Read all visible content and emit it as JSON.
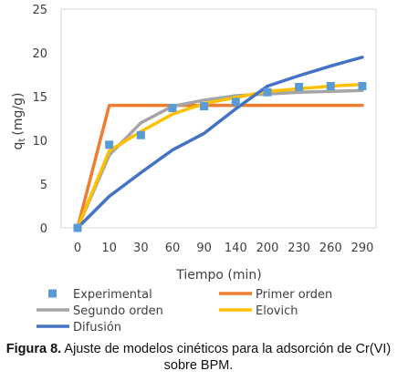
{
  "chart_data": {
    "type": "line",
    "title": "",
    "xlabel": "Tiempo (min)",
    "ylabel": "q",
    "ylabel_sub": "t",
    "ylabel_unit": "(mg/g)",
    "categories": [
      "0",
      "10",
      "30",
      "60",
      "90",
      "140",
      "200",
      "230",
      "260",
      "290"
    ],
    "ylim": [
      0,
      25
    ],
    "yticks": [
      0,
      5,
      10,
      15,
      20,
      25
    ],
    "grid": false,
    "legend_position": "bottom",
    "series": [
      {
        "name": "Experimental",
        "kind": "markers",
        "color": "#5b9bd5",
        "values": [
          0,
          9.5,
          10.6,
          13.7,
          13.9,
          14.4,
          15.5,
          16.1,
          16.2,
          16.2
        ]
      },
      {
        "name": "Primer orden",
        "kind": "line",
        "color": "#ed7d31",
        "values": [
          0,
          14.0,
          14.0,
          14.0,
          14.0,
          14.0,
          14.0,
          14.0,
          14.0,
          14.0
        ]
      },
      {
        "name": "Segundo orden",
        "kind": "line",
        "color": "#a5a5a5",
        "values": [
          0,
          8.3,
          12.0,
          13.9,
          14.6,
          15.1,
          15.3,
          15.5,
          15.6,
          15.7
        ]
      },
      {
        "name": "Elovich",
        "kind": "line",
        "color": "#ffc000",
        "values": [
          0,
          8.8,
          11.0,
          13.0,
          14.2,
          14.9,
          15.6,
          15.9,
          16.2,
          16.4
        ]
      },
      {
        "name": "Difusión",
        "kind": "line",
        "color": "#4472c4",
        "values": [
          0,
          3.6,
          6.3,
          8.9,
          10.8,
          13.6,
          16.2,
          17.4,
          18.5,
          19.5
        ]
      }
    ]
  },
  "caption": {
    "label": "Figura 8.",
    "text": " Ajuste de modelos cinéticos para la adsorción de Cr(VI) sobre BPM."
  }
}
